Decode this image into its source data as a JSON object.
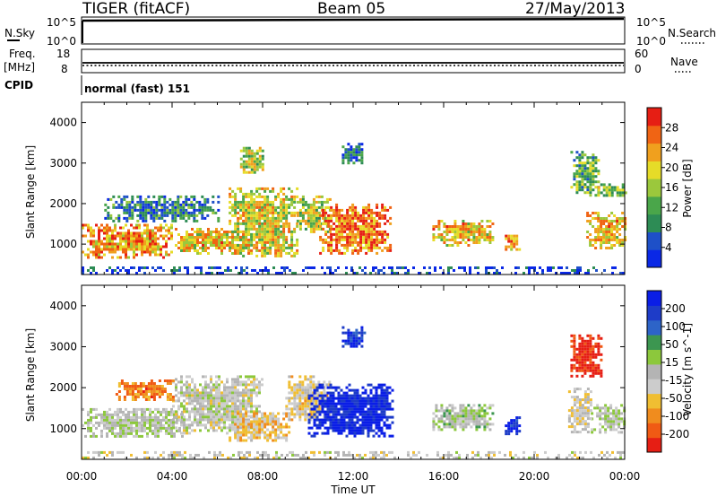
{
  "header": {
    "title": "TIGER (fitACF)",
    "beam": "Beam 05",
    "date": "27/May/2013"
  },
  "top_panels": {
    "nsky_label": "N.Sky",
    "nsky_ticks": [
      "10^5",
      "10^0"
    ],
    "nsearch_label": "N.Search",
    "nsearch_ticks": [
      "10^5",
      "10^0"
    ],
    "freq_label": "Freq.",
    "freq_unit": "[MHz]",
    "freq_ticks": [
      "18",
      "8"
    ],
    "nave_label": "Nave",
    "nave_ticks": [
      "60",
      "0"
    ],
    "cpid_label": "CPID",
    "cpid_text": "normal (fast) 151"
  },
  "colors": {
    "power_scale": [
      "#0a28e6",
      "#1e50c8",
      "#2d8c55",
      "#4aa64a",
      "#9bc83c",
      "#e6dc28",
      "#f0a01e",
      "#f06414",
      "#e61e14"
    ],
    "velocity_scale": [
      "#e61e14",
      "#f05a14",
      "#f08c1e",
      "#f0be32",
      "#cccccc",
      "#b4b4b4",
      "#8cc83c",
      "#3c9650",
      "#2d64c8",
      "#1e3cc8",
      "#0a1ee6"
    ]
  },
  "chart_data": [
    {
      "type": "heatmap",
      "title": "",
      "ylabel": "Slant Range [km]",
      "xlabel": "",
      "ylim": [
        250,
        4500
      ],
      "y_ticks": [
        "1000",
        "2000",
        "3000",
        "4000"
      ],
      "colorbar": {
        "label": "Power [dB]",
        "ticks": [
          "28",
          "24",
          "20",
          "16",
          "12",
          "8",
          "4"
        ],
        "range": [
          0,
          30
        ]
      },
      "blobs": [
        {
          "t": [
            0.0,
            4.0
          ],
          "r": [
            700,
            1500
          ],
          "v": 22
        },
        {
          "t": [
            4.0,
            7.5
          ],
          "r": [
            800,
            1400
          ],
          "v": 20
        },
        {
          "t": [
            1.0,
            6.0
          ],
          "r": [
            1600,
            2200
          ],
          "v": 8
        },
        {
          "t": [
            6.5,
            9.5
          ],
          "r": [
            700,
            2400
          ],
          "v": 18
        },
        {
          "t": [
            7.0,
            8.0
          ],
          "r": [
            2800,
            3400
          ],
          "v": 16
        },
        {
          "t": [
            9.5,
            11.0
          ],
          "r": [
            1300,
            2200
          ],
          "v": 16
        },
        {
          "t": [
            10.5,
            13.6
          ],
          "r": [
            800,
            2000
          ],
          "v": 24
        },
        {
          "t": [
            11.5,
            12.5
          ],
          "r": [
            3000,
            3500
          ],
          "v": 6
        },
        {
          "t": [
            15.5,
            18.2
          ],
          "r": [
            1000,
            1600
          ],
          "v": 20
        },
        {
          "t": [
            18.7,
            19.3
          ],
          "r": [
            900,
            1300
          ],
          "v": 22
        },
        {
          "t": [
            21.6,
            22.8
          ],
          "r": [
            2200,
            3300
          ],
          "v": 12
        },
        {
          "t": [
            22.3,
            24.0
          ],
          "r": [
            900,
            1800
          ],
          "v": 20
        },
        {
          "t": [
            22.8,
            24.0
          ],
          "r": [
            2200,
            2500
          ],
          "v": 14
        },
        {
          "t": [
            0.0,
            24.0
          ],
          "r": [
            280,
            450
          ],
          "v": 3
        }
      ]
    },
    {
      "type": "heatmap",
      "title": "",
      "ylabel": "Slant Range [km]",
      "xlabel": "Time UT",
      "ylim": [
        250,
        4500
      ],
      "y_ticks": [
        "1000",
        "2000",
        "3000",
        "4000"
      ],
      "x_ticks": [
        "00:00",
        "04:00",
        "08:00",
        "12:00",
        "16:00",
        "20:00",
        "00:00"
      ],
      "colorbar": {
        "label": "Velocity [m s^-1]",
        "ticks": [
          "200",
          "100",
          "50",
          "15",
          "-15",
          "-50",
          "-100",
          "-200"
        ],
        "range": [
          -250,
          250
        ]
      },
      "blobs": [
        {
          "t": [
            0.0,
            4.5
          ],
          "r": [
            800,
            1500
          ],
          "v": 0
        },
        {
          "t": [
            4.0,
            8.0
          ],
          "r": [
            900,
            2300
          ],
          "v": -20
        },
        {
          "t": [
            6.5,
            9.2
          ],
          "r": [
            700,
            1400
          ],
          "v": -80
        },
        {
          "t": [
            1.5,
            4.0
          ],
          "r": [
            1700,
            2200
          ],
          "v": -150
        },
        {
          "t": [
            9.0,
            11.0
          ],
          "r": [
            1200,
            2300
          ],
          "v": -60
        },
        {
          "t": [
            10.0,
            13.8
          ],
          "r": [
            800,
            2100
          ],
          "v": 220
        },
        {
          "t": [
            11.5,
            12.5
          ],
          "r": [
            3000,
            3500
          ],
          "v": 200
        },
        {
          "t": [
            15.5,
            18.2
          ],
          "r": [
            1000,
            1600
          ],
          "v": 20
        },
        {
          "t": [
            18.7,
            19.3
          ],
          "r": [
            900,
            1300
          ],
          "v": 200
        },
        {
          "t": [
            21.6,
            23.0
          ],
          "r": [
            2300,
            3300
          ],
          "v": -220
        },
        {
          "t": [
            22.5,
            24.0
          ],
          "r": [
            900,
            1600
          ],
          "v": 0
        },
        {
          "t": [
            21.5,
            22.5
          ],
          "r": [
            900,
            2000
          ],
          "v": -40
        },
        {
          "t": [
            0.0,
            24.0
          ],
          "r": [
            280,
            450
          ],
          "v": -30
        }
      ]
    }
  ]
}
